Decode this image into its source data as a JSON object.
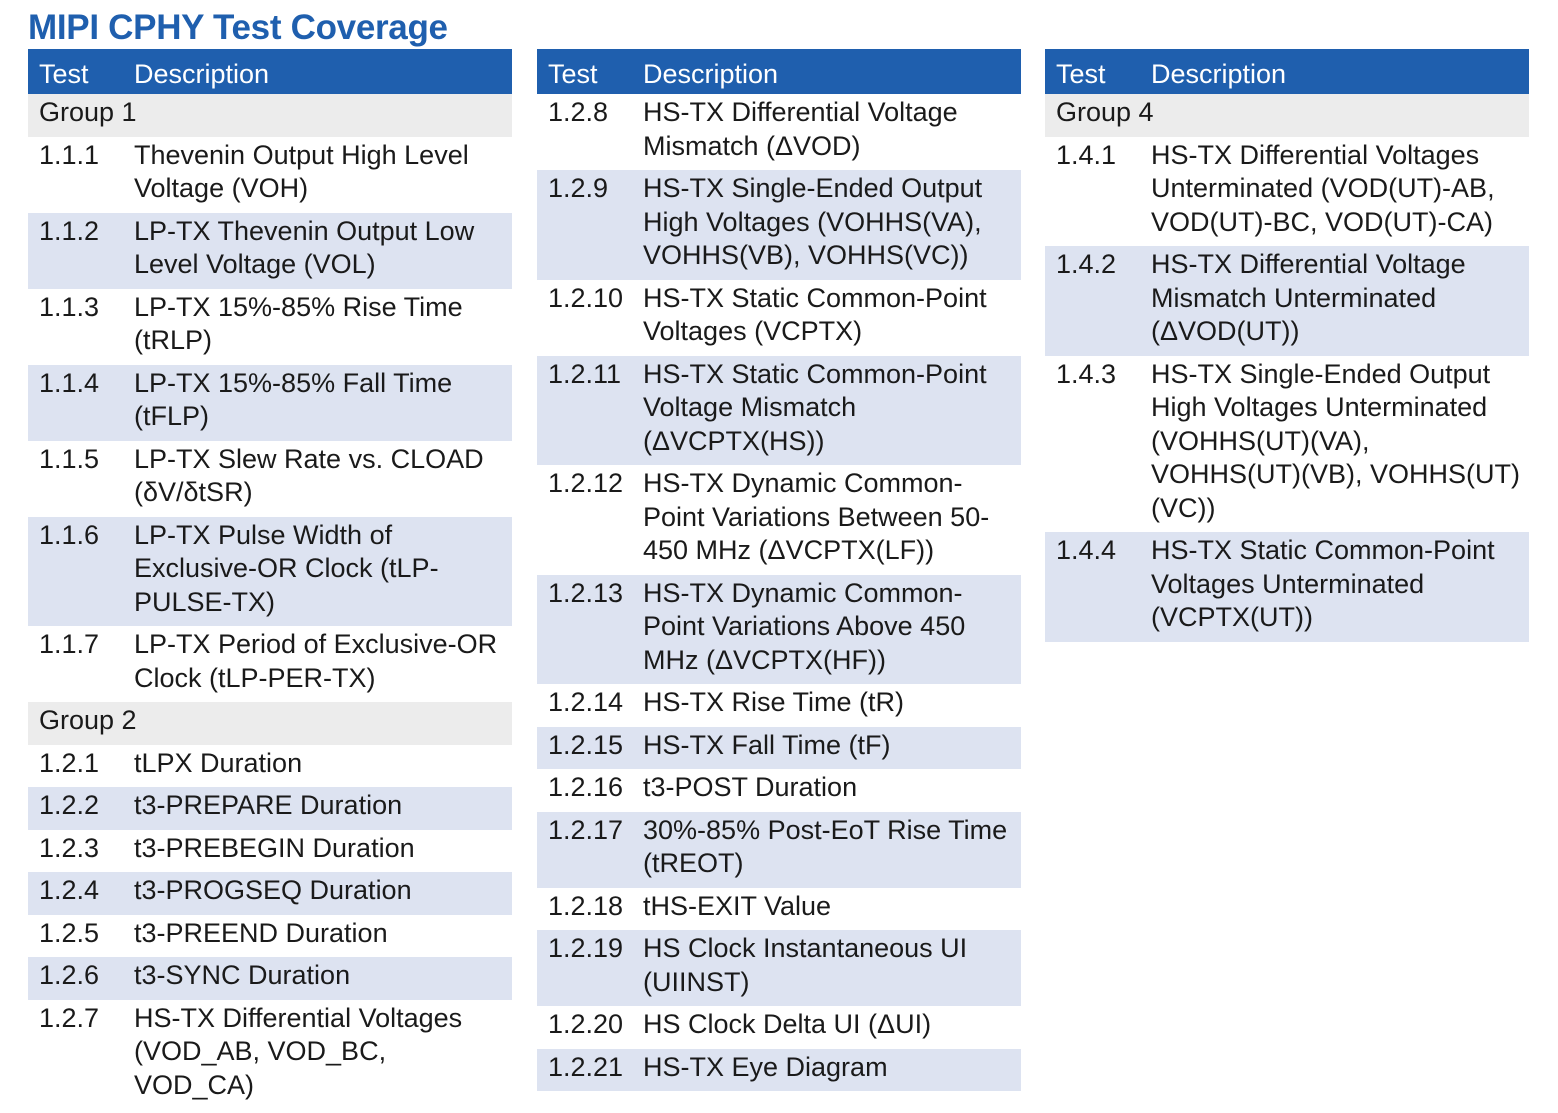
{
  "title": "MIPI CPHY Test Coverage",
  "header": {
    "test": "Test",
    "description": "Description"
  },
  "columns": [
    [
      {
        "group": "Group 1"
      },
      {
        "test": "1.1.1",
        "desc": "Thevenin Output High Level Voltage (VOH)"
      },
      {
        "test": "1.1.2",
        "desc": "LP-TX Thevenin Output Low Level Voltage (VOL)"
      },
      {
        "test": "1.1.3",
        "desc": "LP-TX 15%-85% Rise Time (tRLP)"
      },
      {
        "test": "1.1.4",
        "desc": "LP-TX 15%-85% Fall Time (tFLP)"
      },
      {
        "test": "1.1.5",
        "desc": "LP-TX Slew Rate vs. CLOAD (δV/δtSR)"
      },
      {
        "test": "1.1.6",
        "desc": "LP-TX Pulse Width of Exclusive-OR Clock (tLP-PULSE-TX)"
      },
      {
        "test": "1.1.7",
        "desc": "LP-TX Period of Exclusive-OR Clock (tLP-PER-TX)"
      },
      {
        "group": "Group 2"
      },
      {
        "test": "1.2.1",
        "desc": "tLPX Duration"
      },
      {
        "test": "1.2.2",
        "desc": "t3-PREPARE Duration"
      },
      {
        "test": "1.2.3",
        "desc": "t3-PREBEGIN Duration"
      },
      {
        "test": "1.2.4",
        "desc": "t3-PROGSEQ Duration"
      },
      {
        "test": "1.2.5",
        "desc": "t3-PREEND Duration"
      },
      {
        "test": "1.2.6",
        "desc": "t3-SYNC Duration"
      },
      {
        "test": "1.2.7",
        "desc": "HS-TX Differential Voltages (VOD_AB, VOD_BC, VOD_CA)"
      }
    ],
    [
      {
        "test": "1.2.8",
        "desc": "HS-TX Differential Voltage Mismatch (ΔVOD)"
      },
      {
        "test": "1.2.9",
        "desc": "HS-TX Single-Ended Output High Voltages (VOHHS(VA), VOHHS(VB), VOHHS(VC))"
      },
      {
        "test": "1.2.10",
        "desc": "HS-TX Static Common-Point Voltages (VCPTX)"
      },
      {
        "test": "1.2.11",
        "desc": "HS-TX Static Common-Point Voltage Mismatch (ΔVCPTX(HS))"
      },
      {
        "test": "1.2.12",
        "desc": "HS-TX Dynamic Common-Point Variations Between 50-450 MHz (ΔVCPTX(LF))"
      },
      {
        "test": "1.2.13",
        "desc": "HS-TX Dynamic Common-Point Variations Above 450 MHz (ΔVCPTX(HF))"
      },
      {
        "test": "1.2.14",
        "desc": "HS-TX Rise Time (tR)"
      },
      {
        "test": "1.2.15",
        "desc": "HS-TX Fall Time (tF)"
      },
      {
        "test": "1.2.16",
        "desc": "t3-POST Duration"
      },
      {
        "test": "1.2.17",
        "desc": "30%-85% Post-EoT Rise Time (tREOT)"
      },
      {
        "test": "1.2.18",
        "desc": "tHS-EXIT Value"
      },
      {
        "test": "1.2.19",
        "desc": "HS Clock Instantaneous UI (UIINST)"
      },
      {
        "test": "1.2.20",
        "desc": "HS Clock Delta UI (ΔUI)"
      },
      {
        "test": "1.2.21",
        "desc": "HS-TX Eye Diagram"
      }
    ],
    [
      {
        "group": "Group 4"
      },
      {
        "test": "1.4.1",
        "desc": "HS-TX Differential Voltages Unterminated (VOD(UT)-AB, VOD(UT)-BC, VOD(UT)-CA)"
      },
      {
        "test": "1.4.2",
        "desc": "HS-TX Differential Voltage Mismatch Unterminated (ΔVOD(UT))"
      },
      {
        "test": "1.4.3",
        "desc": "HS-TX Single-Ended Output High Voltages Unterminated (VOHHS(UT)(VA), VOHHS(UT)(VB), VOHHS(UT)(VC))"
      },
      {
        "test": "1.4.4",
        "desc": "HS-TX Static Common-Point Voltages Unterminated (VCPTX(UT))"
      }
    ]
  ]
}
